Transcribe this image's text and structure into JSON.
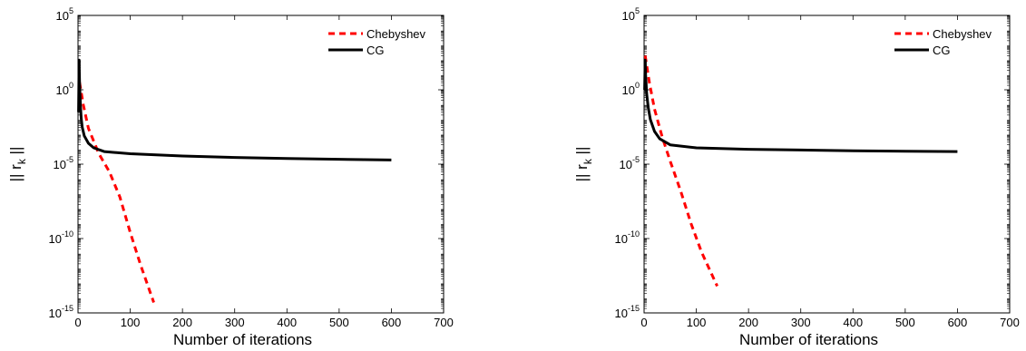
{
  "chart_data": [
    {
      "type": "line",
      "xlabel": "Number of iterations",
      "ylabel": "|| r_k ||",
      "ylabel_base": "|| r",
      "ylabel_sub": "k",
      "ylabel_close": " ||",
      "yscale": "log",
      "xlim": [
        0,
        700
      ],
      "ylim_exp": [
        -15,
        5
      ],
      "x_ticks": [
        "0",
        "100",
        "200",
        "300",
        "400",
        "500",
        "600",
        "700"
      ],
      "y_ticks": [
        {
          "base": "10",
          "exp": "5"
        },
        {
          "base": "10",
          "exp": "0"
        },
        {
          "base": "10",
          "exp": "-5"
        },
        {
          "base": "10",
          "exp": "-10"
        },
        {
          "base": "10",
          "exp": "-15"
        }
      ],
      "legend_position": "top-right",
      "series": [
        {
          "name": "Chebyshev",
          "color": "#ff0000",
          "style": "dashed",
          "x": [
            3,
            10,
            20,
            40,
            60,
            80,
            100,
            120,
            145
          ],
          "log10_y": [
            0.5,
            -1.0,
            -2.6,
            -4.3,
            -5.5,
            -7.2,
            -9.6,
            -11.8,
            -14.3
          ]
        },
        {
          "name": "CG",
          "color": "#000000",
          "style": "solid",
          "x": [
            1,
            2,
            3,
            4,
            5,
            6,
            8,
            12,
            20,
            30,
            50,
            100,
            200,
            300,
            400,
            500,
            600
          ],
          "log10_y": [
            -1.5,
            2.0,
            0.5,
            -0.5,
            -1.3,
            -1.9,
            -2.5,
            -3.1,
            -3.6,
            -3.9,
            -4.15,
            -4.3,
            -4.45,
            -4.55,
            -4.62,
            -4.67,
            -4.72
          ]
        }
      ]
    },
    {
      "type": "line",
      "xlabel": "Number of iterations",
      "ylabel": "|| r_k ||",
      "ylabel_base": "|| r",
      "ylabel_sub": "k",
      "ylabel_close": " ||",
      "yscale": "log",
      "xlim": [
        0,
        700
      ],
      "ylim_exp": [
        -15,
        5
      ],
      "x_ticks": [
        "0",
        "100",
        "200",
        "300",
        "400",
        "500",
        "600",
        "700"
      ],
      "y_ticks": [
        {
          "base": "10",
          "exp": "5"
        },
        {
          "base": "10",
          "exp": "0"
        },
        {
          "base": "10",
          "exp": "-5"
        },
        {
          "base": "10",
          "exp": "-10"
        },
        {
          "base": "10",
          "exp": "-15"
        }
      ],
      "legend_position": "top-right",
      "series": [
        {
          "name": "Chebyshev",
          "color": "#ff0000",
          "style": "dashed",
          "x": [
            2,
            10,
            20,
            35,
            50,
            70,
            90,
            110,
            140
          ],
          "log10_y": [
            2.3,
            0.5,
            -1.3,
            -3.2,
            -4.8,
            -6.8,
            -9.0,
            -10.9,
            -13.2
          ]
        },
        {
          "name": "CG",
          "color": "#000000",
          "style": "solid",
          "x": [
            1,
            2,
            3,
            5,
            8,
            12,
            20,
            30,
            50,
            100,
            200,
            300,
            400,
            500,
            600
          ],
          "log10_y": [
            0.0,
            2.0,
            1.0,
            -0.3,
            -1.2,
            -2.0,
            -2.8,
            -3.3,
            -3.7,
            -3.9,
            -4.0,
            -4.05,
            -4.1,
            -4.13,
            -4.15
          ]
        }
      ]
    }
  ]
}
